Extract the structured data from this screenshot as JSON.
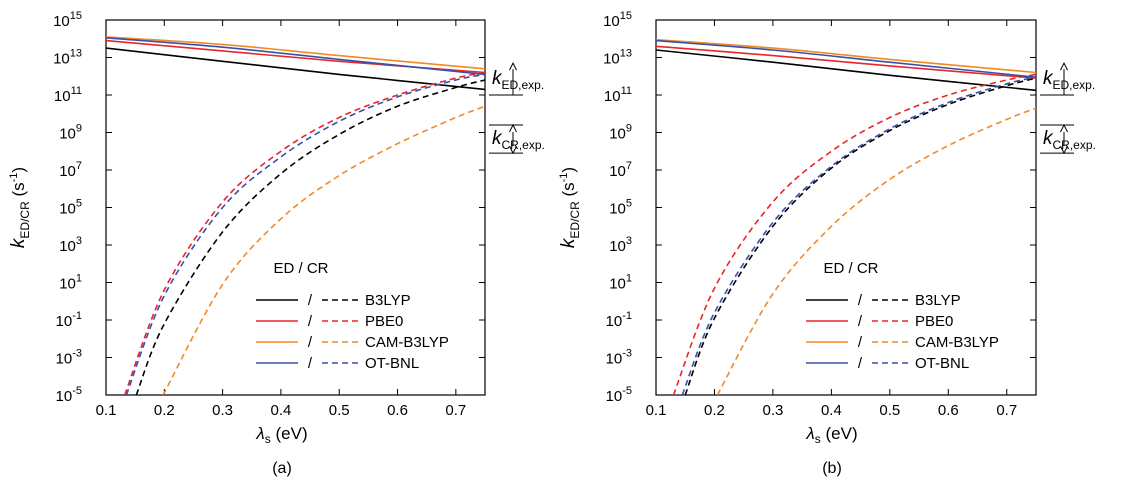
{
  "chart_data": [
    {
      "type": "line",
      "panel_label": "(a)",
      "xlabel_main": "λ",
      "xlabel_sub": "s",
      "xlabel_unit": "(eV)",
      "ylabel_main": "k",
      "ylabel_sub": "ED/CR",
      "ylabel_unit_open": "(s",
      "ylabel_unit_exp": "-1",
      "ylabel_unit_close": ")",
      "xlim": [
        0.1,
        0.75
      ],
      "ylim_log10": [
        -5,
        15
      ],
      "log_y": true,
      "x_ticks": [
        "0.1",
        "0.2",
        "0.3",
        "0.4",
        "0.5",
        "0.6",
        "0.7"
      ],
      "y_tick_base": "10",
      "y_tick_exps": [
        "15",
        "13",
        "11",
        "9",
        "7",
        "5",
        "3",
        "1",
        "-1",
        "-3",
        "-5"
      ],
      "legend_header": "ED / CR",
      "legend_separator": "/",
      "legend_position": "bottom-right",
      "annotations": [
        {
          "main": "k",
          "sub": "ED,exp.",
          "range_log10": [
            11,
            12.7
          ]
        },
        {
          "main": "k",
          "sub": "CR,exp.",
          "range_log10": [
            7.9,
            9.4
          ]
        }
      ],
      "series": [
        {
          "name": "B3LYP",
          "color": "#000000",
          "ed_log10": [
            [
              0.1,
              13.5
            ],
            [
              0.3,
              12.8
            ],
            [
              0.5,
              12.1
            ],
            [
              0.75,
              11.3
            ]
          ],
          "cr_log10": [
            [
              0.152,
              -5
            ],
            [
              0.2,
              -1.2
            ],
            [
              0.3,
              3.7
            ],
            [
              0.4,
              6.8
            ],
            [
              0.5,
              8.9
            ],
            [
              0.6,
              10.4
            ],
            [
              0.7,
              11.4
            ],
            [
              0.75,
              11.8
            ]
          ]
        },
        {
          "name": "PBE0",
          "color": "#e8262a",
          "ed_log10": [
            [
              0.1,
              13.9
            ],
            [
              0.3,
              13.35
            ],
            [
              0.5,
              12.8
            ],
            [
              0.75,
              12.2
            ]
          ],
          "cr_log10": [
            [
              0.132,
              -5
            ],
            [
              0.2,
              0.6
            ],
            [
              0.3,
              5.3
            ],
            [
              0.4,
              8.0
            ],
            [
              0.5,
              9.8
            ],
            [
              0.6,
              11.0
            ],
            [
              0.7,
              11.9
            ],
            [
              0.75,
              12.2
            ]
          ]
        },
        {
          "name": "CAM-B3LYP",
          "color": "#f08a24",
          "ed_log10": [
            [
              0.1,
              14.1
            ],
            [
              0.3,
              13.7
            ],
            [
              0.5,
              13.1
            ],
            [
              0.75,
              12.4
            ]
          ],
          "cr_log10": [
            [
              0.198,
              -5
            ],
            [
              0.3,
              0.9
            ],
            [
              0.4,
              4.4
            ],
            [
              0.5,
              6.7
            ],
            [
              0.6,
              8.4
            ],
            [
              0.7,
              9.8
            ],
            [
              0.75,
              10.4
            ]
          ]
        },
        {
          "name": "OT-BNL",
          "color": "#3b4fa8",
          "ed_log10": [
            [
              0.1,
              14.05
            ],
            [
              0.3,
              13.55
            ],
            [
              0.5,
              12.9
            ],
            [
              0.75,
              12.1
            ]
          ],
          "cr_log10": [
            [
              0.135,
              -5
            ],
            [
              0.2,
              0.3
            ],
            [
              0.3,
              5.0
            ],
            [
              0.4,
              7.7
            ],
            [
              0.5,
              9.6
            ],
            [
              0.6,
              10.9
            ],
            [
              0.7,
              11.8
            ],
            [
              0.75,
              12.1
            ]
          ]
        }
      ]
    },
    {
      "type": "line",
      "panel_label": "(b)",
      "xlabel_main": "λ",
      "xlabel_sub": "s",
      "xlabel_unit": "(eV)",
      "ylabel_main": "k",
      "ylabel_sub": "ED/CR",
      "ylabel_unit_open": "(s",
      "ylabel_unit_exp": "-1",
      "ylabel_unit_close": ")",
      "xlim": [
        0.1,
        0.75
      ],
      "ylim_log10": [
        -5,
        15
      ],
      "log_y": true,
      "x_ticks": [
        "0.1",
        "0.2",
        "0.3",
        "0.4",
        "0.5",
        "0.6",
        "0.7"
      ],
      "y_tick_base": "10",
      "y_tick_exps": [
        "15",
        "13",
        "11",
        "9",
        "7",
        "5",
        "3",
        "1",
        "-1",
        "-3",
        "-5"
      ],
      "legend_header": "ED / CR",
      "legend_separator": "/",
      "legend_position": "bottom-right",
      "annotations": [
        {
          "main": "k",
          "sub": "ED,exp.",
          "range_log10": [
            11,
            12.7
          ]
        },
        {
          "main": "k",
          "sub": "CR,exp.",
          "range_log10": [
            7.9,
            9.4
          ]
        }
      ],
      "series": [
        {
          "name": "B3LYP",
          "color": "#000000",
          "ed_log10": [
            [
              0.1,
              13.4
            ],
            [
              0.3,
              12.75
            ],
            [
              0.5,
              12.05
            ],
            [
              0.75,
              11.25
            ]
          ],
          "cr_log10": [
            [
              0.15,
              -5
            ],
            [
              0.2,
              -0.9
            ],
            [
              0.3,
              4.0
            ],
            [
              0.4,
              7.1
            ],
            [
              0.5,
              9.1
            ],
            [
              0.6,
              10.5
            ],
            [
              0.7,
              11.5
            ],
            [
              0.75,
              11.9
            ]
          ]
        },
        {
          "name": "PBE0",
          "color": "#e8262a",
          "ed_log10": [
            [
              0.1,
              13.6
            ],
            [
              0.3,
              13.1
            ],
            [
              0.5,
              12.55
            ],
            [
              0.75,
              11.9
            ]
          ],
          "cr_log10": [
            [
              0.13,
              -5
            ],
            [
              0.2,
              0.7
            ],
            [
              0.3,
              5.3
            ],
            [
              0.4,
              8.0
            ],
            [
              0.5,
              9.8
            ],
            [
              0.6,
              11.0
            ],
            [
              0.7,
              11.8
            ],
            [
              0.75,
              12.1
            ]
          ]
        },
        {
          "name": "CAM-B3LYP",
          "color": "#f08a24",
          "ed_log10": [
            [
              0.1,
              13.95
            ],
            [
              0.3,
              13.5
            ],
            [
              0.5,
              12.9
            ],
            [
              0.75,
              12.2
            ]
          ],
          "cr_log10": [
            [
              0.205,
              -5
            ],
            [
              0.3,
              0.4
            ],
            [
              0.4,
              4.0
            ],
            [
              0.5,
              6.5
            ],
            [
              0.6,
              8.3
            ],
            [
              0.7,
              9.7
            ],
            [
              0.75,
              10.3
            ]
          ]
        },
        {
          "name": "OT-BNL",
          "color": "#3b4fa8",
          "ed_log10": [
            [
              0.1,
              13.9
            ],
            [
              0.3,
              13.4
            ],
            [
              0.5,
              12.75
            ],
            [
              0.75,
              11.95
            ]
          ],
          "cr_log10": [
            [
              0.145,
              -5
            ],
            [
              0.2,
              -0.6
            ],
            [
              0.3,
              4.2
            ],
            [
              0.4,
              7.2
            ],
            [
              0.5,
              9.2
            ],
            [
              0.6,
              10.6
            ],
            [
              0.7,
              11.6
            ],
            [
              0.75,
              11.95
            ]
          ]
        }
      ]
    }
  ]
}
